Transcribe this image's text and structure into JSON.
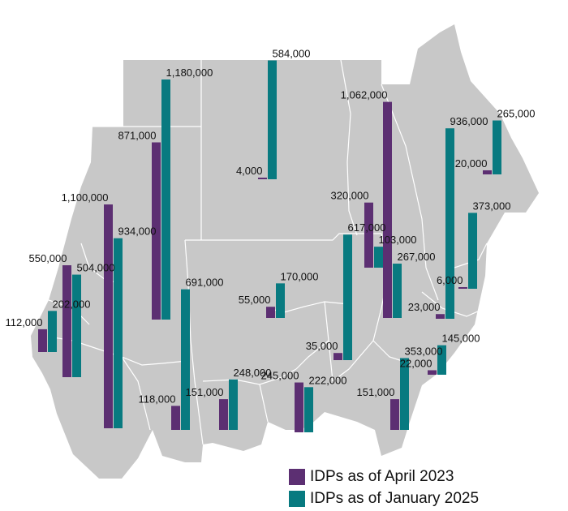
{
  "colors": {
    "april": "#5c2f72",
    "january": "#087a80",
    "land": "#c8c8c8",
    "border": "#ffffff"
  },
  "legend": {
    "april_label": "IDPs as of April 2023",
    "january_label": "IDPs as of January 2025"
  },
  "chart_data": {
    "type": "bar",
    "series": [
      {
        "name": "IDPs as of April 2023",
        "key": "april"
      },
      {
        "name": "IDPs as of January 2025",
        "key": "january"
      }
    ],
    "groups": [
      {
        "april": 112000,
        "january": 202000,
        "april_label": "112,000",
        "january_label": "202,000"
      },
      {
        "april": 550000,
        "january": 504000,
        "april_label": "550,000",
        "january_label": "504,000"
      },
      {
        "april": 1100000,
        "january": 934000,
        "april_label": "1,100,000",
        "january_label": "934,000"
      },
      {
        "april": 871000,
        "january": 1180000,
        "april_label": "871,000",
        "january_label": "1,180,000"
      },
      {
        "april": 118000,
        "january": 691000,
        "april_label": "118,000",
        "january_label": "691,000"
      },
      {
        "april": 151000,
        "january": 248000,
        "april_label": "151,000",
        "january_label": "248,000"
      },
      {
        "april": 4000,
        "january": 584000,
        "april_label": "4,000",
        "january_label": "584,000"
      },
      {
        "april": 55000,
        "january": 170000,
        "april_label": "55,000",
        "january_label": "170,000"
      },
      {
        "april": 245000,
        "january": 222000,
        "april_label": "245,000",
        "january_label": "222,000"
      },
      {
        "april": 35000,
        "january": 617000,
        "april_label": "35,000",
        "january_label": "617,000"
      },
      {
        "april": 320000,
        "january": 103000,
        "april_label": "320,000",
        "january_label": "103,000"
      },
      {
        "april": 1062000,
        "january": 267000,
        "april_label": "1,062,000",
        "january_label": "267,000"
      },
      {
        "april": 151000,
        "january": 353000,
        "april_label": "151,000",
        "january_label": "353,000"
      },
      {
        "april": 23000,
        "january": 936000,
        "april_label": "23,000",
        "january_label": "936,000"
      },
      {
        "april": 22000,
        "january": 145000,
        "april_label": "22,000",
        "january_label": "145,000"
      },
      {
        "april": 6000,
        "january": 373000,
        "april_label": "6,000",
        "january_label": "373,000"
      },
      {
        "april": 20000,
        "january": 265000,
        "april_label": "20,000",
        "january_label": "265,000"
      }
    ]
  }
}
